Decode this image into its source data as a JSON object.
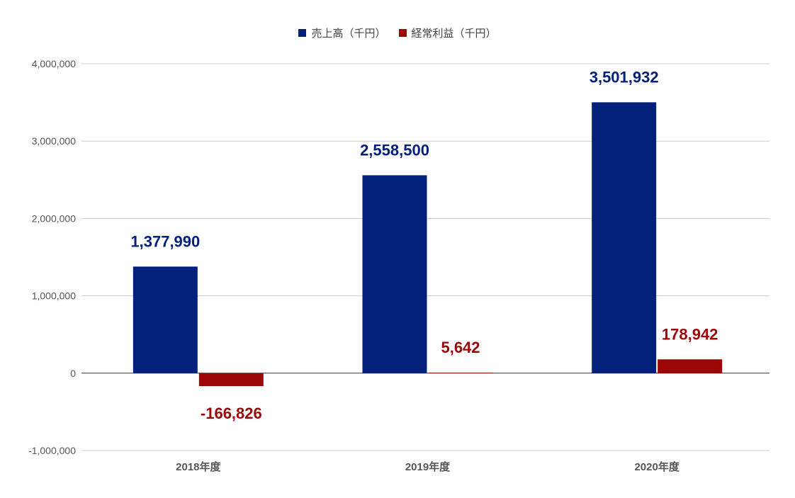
{
  "chart_data": {
    "type": "bar",
    "categories": [
      "2018年度",
      "2019年度",
      "2020年度"
    ],
    "series": [
      {
        "name": "売上高（千円）",
        "values": [
          1377990,
          2558500,
          3501932
        ],
        "color": "#03217a",
        "labels": [
          "1,377,990",
          "2,558,500",
          "3,501,932"
        ]
      },
      {
        "name": "経常利益（千円）",
        "values": [
          -166826,
          5642,
          178942
        ],
        "color": "#9c0606",
        "labels": [
          "-166,826",
          "5,642",
          "178,942"
        ]
      }
    ],
    "ylim": [
      -1000000,
      4000000
    ],
    "yticks": [
      -1000000,
      0,
      1000000,
      2000000,
      3000000,
      4000000
    ],
    "ytick_labels": [
      "-1,000,000",
      "0",
      "1,000,000",
      "2,000,000",
      "3,000,000",
      "4,000,000"
    ],
    "grid": true,
    "legend_position": "top-center"
  }
}
